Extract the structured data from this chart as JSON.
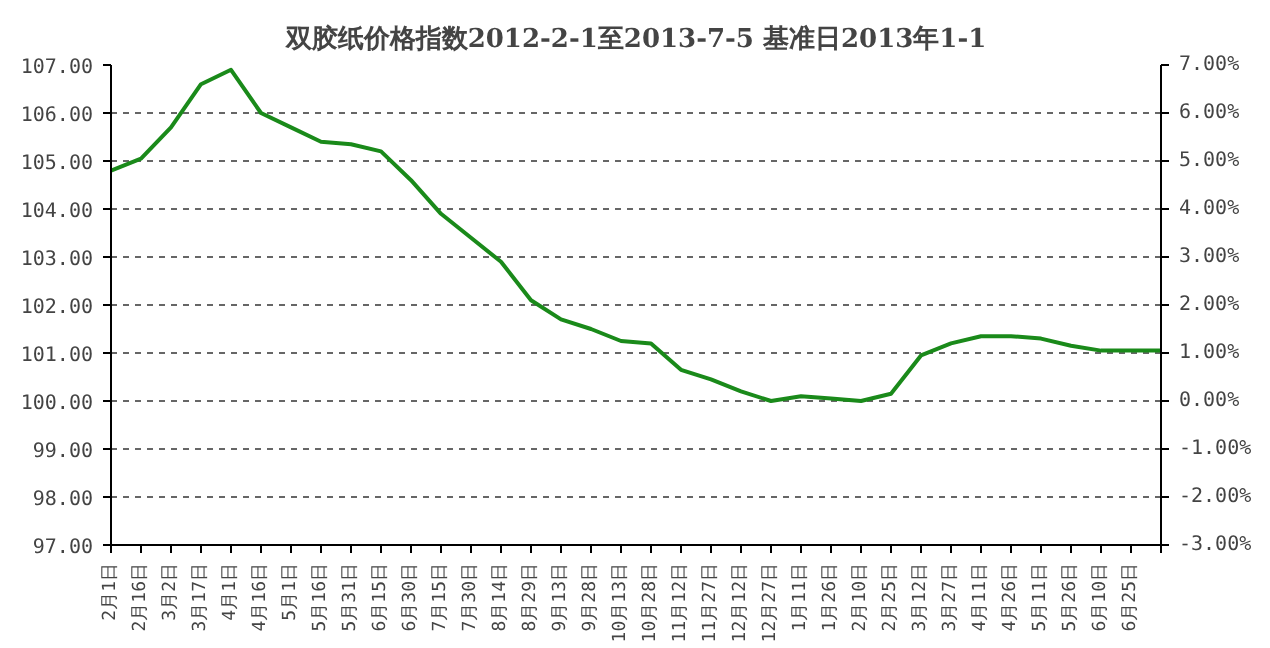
{
  "chart_data": {
    "type": "line",
    "title": "双胶纸价格指数2012-2-1至2013-7-5 基准日2013年1-1",
    "categories": [
      "2月1日",
      "2月16日",
      "3月2日",
      "3月17日",
      "4月1日",
      "4月16日",
      "5月1日",
      "5月16日",
      "5月31日",
      "6月15日",
      "6月30日",
      "7月15日",
      "7月30日",
      "8月14日",
      "8月29日",
      "9月13日",
      "9月28日",
      "10月13日",
      "10月28日",
      "11月12日",
      "11月27日",
      "12月12日",
      "12月27日",
      "1月11日",
      "1月26日",
      "2月10日",
      "2月25日",
      "3月12日",
      "3月27日",
      "4月11日",
      "4月26日",
      "5月11日",
      "5月26日",
      "6月10日",
      "6月25日",
      null
    ],
    "series": [
      {
        "color": "#1a8a1a",
        "values": [
          104.8,
          105.05,
          105.7,
          106.6,
          106.9,
          106.0,
          105.7,
          105.4,
          105.35,
          105.2,
          104.6,
          103.9,
          103.4,
          102.9,
          102.1,
          101.7,
          101.5,
          101.25,
          101.2,
          100.65,
          100.45,
          100.2,
          100.0,
          100.1,
          100.05,
          100.0,
          100.15,
          100.95,
          101.2,
          101.35,
          101.35,
          101.3,
          101.15,
          101.05,
          101.05,
          101.05
        ]
      }
    ],
    "ylim": [
      97,
      107
    ],
    "yticks": [
      {
        "value": 97,
        "label": "97.00"
      },
      {
        "value": 98,
        "label": "98.00"
      },
      {
        "value": 99,
        "label": "99.00"
      },
      {
        "value": 100,
        "label": "100.00"
      },
      {
        "value": 101,
        "label": "101.00"
      },
      {
        "value": 102,
        "label": "102.00"
      },
      {
        "value": 103,
        "label": "103.00"
      },
      {
        "value": 104,
        "label": "104.00"
      },
      {
        "value": 105,
        "label": "105.00"
      },
      {
        "value": 106,
        "label": "106.00"
      },
      {
        "value": 107,
        "label": "107.00"
      }
    ],
    "y2lim": [
      -3,
      7
    ],
    "y2ticks": [
      {
        "value": -3,
        "label": "-3.00%"
      },
      {
        "value": -2,
        "label": "-2.00%"
      },
      {
        "value": -1,
        "label": "-1.00%"
      },
      {
        "value": 0,
        "label": "0.00%"
      },
      {
        "value": 1,
        "label": "1.00%"
      },
      {
        "value": 2,
        "label": "2.00%"
      },
      {
        "value": 3,
        "label": "3.00%"
      },
      {
        "value": 4,
        "label": "4.00%"
      },
      {
        "value": 5,
        "label": "5.00%"
      },
      {
        "value": 6,
        "label": "6.00%"
      },
      {
        "value": 7,
        "label": "7.00%"
      }
    ],
    "grid": "y"
  }
}
